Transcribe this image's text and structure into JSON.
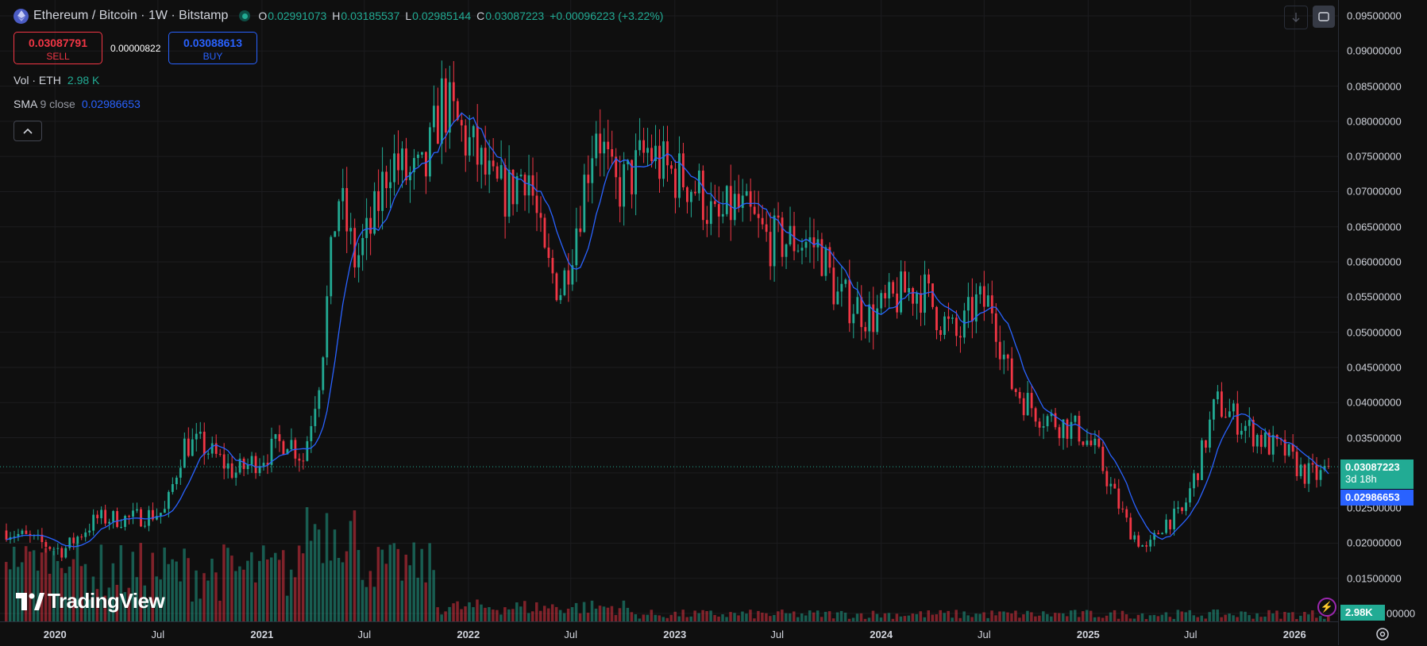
{
  "header": {
    "symbol_title": "Ethereum / Bitcoin · 1W · Bitstamp",
    "ohlc": {
      "o_label": "O",
      "o": "0.02991073",
      "h_label": "H",
      "h": "0.03185537",
      "l_label": "L",
      "l": "0.02985144",
      "c_label": "C",
      "c": "0.03087223",
      "change": "+0.00096223 (+3.22%)"
    }
  },
  "trade": {
    "sell_price": "0.03087791",
    "sell_label": "SELL",
    "spread": "0.00000822",
    "buy_price": "0.03088613",
    "buy_label": "BUY"
  },
  "indicators": {
    "vol_label": "Vol · ETH",
    "vol_value": "2.98 K",
    "sma_label": "SMA",
    "sma_params": "9 close",
    "sma_value": "0.02986653"
  },
  "price_labels": {
    "last": "0.03087223",
    "countdown": "3d 18h",
    "sma": "0.02986653",
    "volume": "2.98K"
  },
  "branding": {
    "logo_text": "TradingView"
  },
  "colors": {
    "up": "#22ab94",
    "down": "#f23645",
    "sma": "#2962ff",
    "background": "#0f0f0f",
    "grid": "#1c1c1f"
  },
  "chart_data": {
    "type": "candlestick",
    "title": "Ethereum / Bitcoin · 1W · Bitstamp",
    "interval": "1W",
    "y_axis": {
      "ticks": [
        "0.01000000",
        "0.01500000",
        "0.02000000",
        "0.02500000",
        "0.03000000",
        "0.03500000",
        "0.04000000",
        "0.04500000",
        "0.05000000",
        "0.05500000",
        "0.06000000",
        "0.06500000",
        "0.07000000",
        "0.07500000",
        "0.08000000",
        "0.08500000",
        "0.09000000",
        "0.09500000"
      ],
      "range": [
        0.0092,
        0.097
      ]
    },
    "x_axis": {
      "ticks": [
        "2020",
        "Jul",
        "2021",
        "Jul",
        "2022",
        "Jul",
        "2023",
        "Jul",
        "2024",
        "Jul",
        "2025",
        "Jul",
        "2026"
      ],
      "range": [
        "2019-10-07",
        "2026-03-02"
      ]
    },
    "approx_close_path": [
      [
        "2019-10",
        "0.0218"
      ],
      [
        "2020-01",
        "0.0189"
      ],
      [
        "2020-03",
        "0.0235"
      ],
      [
        "2020-05",
        "0.0235"
      ],
      [
        "2020-07",
        "0.0245"
      ],
      [
        "2020-08",
        "0.0340"
      ],
      [
        "2020-09",
        "0.0340"
      ],
      [
        "2020-11",
        "0.0300"
      ],
      [
        "2021-01",
        "0.0330"
      ],
      [
        "2021-02",
        "0.0350"
      ],
      [
        "2021-03",
        "0.0320"
      ],
      [
        "2021-04",
        "0.0450"
      ],
      [
        "2021-05",
        "0.0700"
      ],
      [
        "2021-06",
        "0.0600"
      ],
      [
        "2021-07",
        "0.0650"
      ],
      [
        "2021-08",
        "0.0750"
      ],
      [
        "2021-09",
        "0.0720"
      ],
      [
        "2021-10",
        "0.0720"
      ],
      [
        "2021-11",
        "0.0830"
      ],
      [
        "2021-12",
        "0.0790"
      ],
      [
        "2022-01",
        "0.0750"
      ],
      [
        "2022-02",
        "0.0700"
      ],
      [
        "2022-03",
        "0.0700"
      ],
      [
        "2022-04",
        "0.0740"
      ],
      [
        "2022-05",
        "0.0600"
      ],
      [
        "2022-06",
        "0.0560"
      ],
      [
        "2022-07",
        "0.0670"
      ],
      [
        "2022-08",
        "0.0800"
      ],
      [
        "2022-09",
        "0.0700"
      ],
      [
        "2022-10",
        "0.0720"
      ],
      [
        "2022-11",
        "0.0760"
      ],
      [
        "2022-12",
        "0.0730"
      ],
      [
        "2023-01",
        "0.0720"
      ],
      [
        "2023-02",
        "0.0700"
      ],
      [
        "2023-03",
        "0.0650"
      ],
      [
        "2023-04",
        "0.0680"
      ],
      [
        "2023-05",
        "0.0660"
      ],
      [
        "2023-06",
        "0.0630"
      ],
      [
        "2023-07",
        "0.0630"
      ],
      [
        "2023-08",
        "0.0630"
      ],
      [
        "2023-09",
        "0.0620"
      ],
      [
        "2023-10",
        "0.0550"
      ],
      [
        "2023-11",
        "0.0540"
      ],
      [
        "2023-12",
        "0.0520"
      ],
      [
        "2024-01",
        "0.0540"
      ],
      [
        "2024-02",
        "0.0560"
      ],
      [
        "2024-03",
        "0.0560"
      ],
      [
        "2024-04",
        "0.0520"
      ],
      [
        "2024-05",
        "0.0490"
      ],
      [
        "2024-06",
        "0.0540"
      ],
      [
        "2024-07",
        "0.0540"
      ],
      [
        "2024-08",
        "0.0430"
      ],
      [
        "2024-09",
        "0.0400"
      ],
      [
        "2024-10",
        "0.0380"
      ],
      [
        "2024-11",
        "0.0370"
      ],
      [
        "2024-12",
        "0.0360"
      ],
      [
        "2025-01",
        "0.0330"
      ],
      [
        "2025-02",
        "0.0270"
      ],
      [
        "2025-03",
        "0.0220"
      ],
      [
        "2025-04",
        "0.0188"
      ],
      [
        "2025-05",
        "0.0230"
      ],
      [
        "2025-06",
        "0.0240"
      ],
      [
        "2025-07",
        "0.0310"
      ],
      [
        "2025-08",
        "0.0400"
      ],
      [
        "2025-09",
        "0.0380"
      ],
      [
        "2025-10",
        "0.0360"
      ],
      [
        "2025-11",
        "0.0340"
      ],
      [
        "2025-12",
        "0.0330"
      ],
      [
        "2026-01",
        "0.0300"
      ],
      [
        "2026-02",
        "0.0295"
      ],
      [
        "2026-03",
        "0.0309"
      ]
    ],
    "last_close": "0.03087223",
    "sma_last": "0.02986653",
    "volume_last": "2.98K"
  }
}
